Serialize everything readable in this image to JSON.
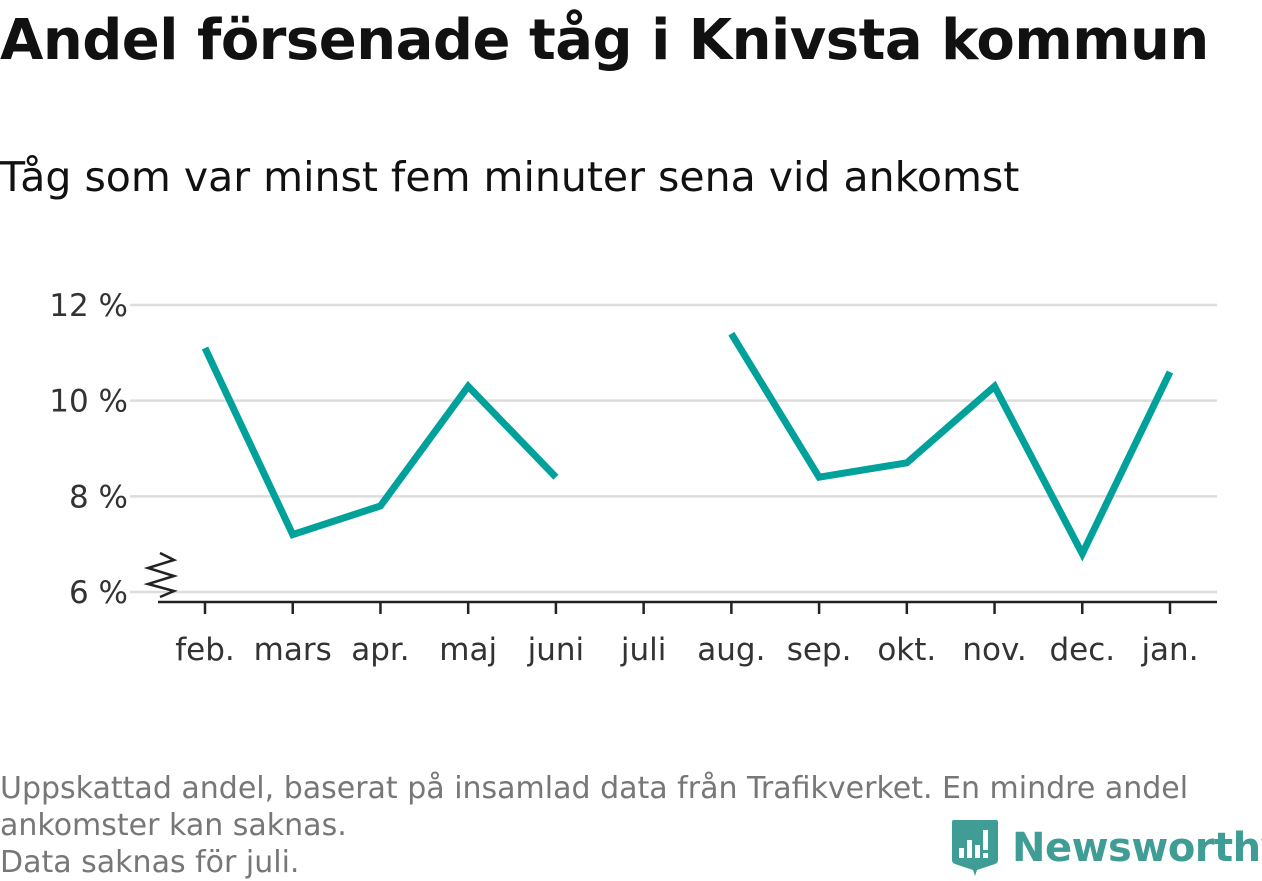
{
  "title": "Andel försenade tåg i Knivsta kommun",
  "subtitle": "Tåg som var minst fem minuter sena vid ankomst",
  "footer": {
    "line1": "Uppskattad andel, baserat på insamlad data från Trafikverket. En mindre andel",
    "line2": "ankomster kan saknas.",
    "line3": "Data saknas för juli."
  },
  "brand": {
    "name": "Newsworthy",
    "color": "#3f9d95"
  },
  "chart_data": {
    "type": "line",
    "categories": [
      "feb.",
      "mars",
      "apr.",
      "maj",
      "juni",
      "juli",
      "aug.",
      "sep.",
      "okt.",
      "nov.",
      "dec.",
      "jan."
    ],
    "series": [
      {
        "values": [
          11.1,
          7.2,
          7.8,
          10.3,
          8.4,
          null,
          11.4,
          8.4,
          8.7,
          10.3,
          6.8,
          10.6
        ],
        "color": "#00a19a"
      }
    ],
    "y_ticks": [
      6,
      8,
      10,
      12
    ],
    "y_tick_labels": [
      "6 %",
      "8 %",
      "10 %",
      "12 %"
    ],
    "ylim": [
      6,
      12
    ],
    "y_axis_break": true,
    "grid": true,
    "xlabel": "",
    "ylabel": ""
  }
}
